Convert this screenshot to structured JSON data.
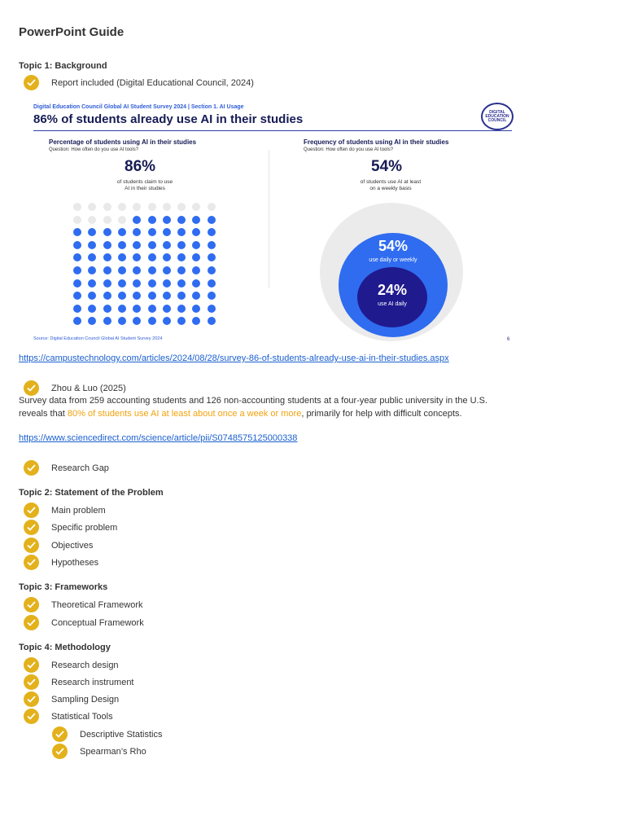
{
  "title": "PowerPoint Guide",
  "topics": {
    "t1": "Topic 1: Background",
    "t2": "Topic 2: Statement of the Problem",
    "t3": "Topic 3: Frameworks",
    "t4": "Topic 4: Methodology"
  },
  "items": {
    "report": "Report included (Digital Educational Council, 2024)",
    "zhou": "Zhou & Luo (2025)",
    "gap": "Research Gap",
    "main_problem": "Main problem",
    "specific_problem": "Specific problem",
    "objectives": "Objectives",
    "hypotheses": "Hypotheses",
    "theoretical": "Theoretical Framework",
    "conceptual": "Conceptual Framework",
    "design": "Research design",
    "instrument": "Research instrument",
    "sampling": "Sampling Design",
    "stat_tools": "Statistical Tools",
    "descriptive": "Descriptive Statistics",
    "spearman": "Spearman’s Rho"
  },
  "links": {
    "campus": "https://campustechnology.com/articles/2024/08/28/survey-86-of-students-already-use-ai-in-their-studies.aspx",
    "sciencedirect": "https://www.sciencedirect.com/science/article/pii/S0748575125000338"
  },
  "paragraph": {
    "line1": "Survey data from 259 accounting students and 126 non-accounting students at a four-year public university in the U.S.",
    "line2_pre": "reveals that ",
    "line2_hl": "80% of students use AI at least about once a week or more",
    "line2_post": ", primarily for help with difficult concepts."
  },
  "infographic": {
    "top_line": "Digital Education Council Global AI Student Survey 2024 | Section 1. AI Usage",
    "headline": "86% of students already use AI in their studies",
    "logo_text": "DIGITAL EDUCATION COUNCIL",
    "left_title": "Percentage of students using AI in their studies",
    "left_question": "Question: How often do you use AI tools?",
    "left_pct": "86%",
    "left_caption_1": "of students claim to use",
    "left_caption_2": "AI in their studies",
    "right_title": "Frequency of students using AI in their studies",
    "right_question": "Question: How often do you use AI tools?",
    "right_pct": "54%",
    "right_caption_1": "of students use AI at least",
    "right_caption_2": "on a weekly basis",
    "circle_mid_pct": "54%",
    "circle_mid_txt": "use daily or weekly",
    "circle_inner_pct": "24%",
    "circle_inner_txt": "use AI daily",
    "source": "Source: Digital Education Council Global AI Student Survey 2024",
    "page": "6",
    "dot_grid": {
      "rows": 10,
      "cols": 10,
      "filled": 86,
      "filled_color": "#2f6cf0",
      "empty_color": "#e9e9e9"
    },
    "circle_colors": {
      "outer": "#ebebeb",
      "mid": "#2f6cf0",
      "inner": "#1f1a8e"
    }
  },
  "colors": {
    "check": "#e3b11b",
    "link": "#1a5fd0",
    "highlight": "#f1a20e"
  }
}
